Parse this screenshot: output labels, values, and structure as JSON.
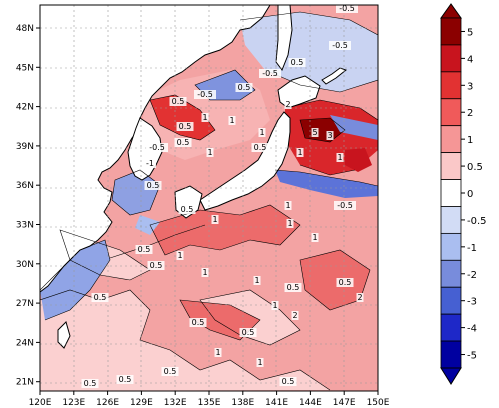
{
  "map": {
    "x_ticks": [
      "120E",
      "123E",
      "126E",
      "129E",
      "132E",
      "135E",
      "138E",
      "141E",
      "144E",
      "147E",
      "150E"
    ],
    "y_ticks": [
      "48N",
      "45N",
      "42N",
      "39N",
      "36N",
      "33N",
      "30N",
      "27N",
      "24N",
      "21N"
    ],
    "contour_labels": [
      "-0.5",
      "-0.5",
      "-0.5",
      "0.5",
      "0.5",
      "-0.5",
      "0.5",
      "2",
      "1",
      "1",
      "0.5",
      "0.5",
      "5",
      "3",
      "1",
      "1",
      "-1",
      "-0.5",
      "0.5",
      "1",
      "1",
      "0.5",
      "-0.5",
      "1",
      "0.5",
      "1",
      "1",
      "1",
      "0.5",
      "0.5",
      "0.5",
      "1",
      "1",
      "1",
      "0.5",
      "0.5",
      "1",
      "2",
      "2",
      "1",
      "0.5",
      "0.5",
      "1",
      "0.5",
      "0.5",
      "0.5",
      "0.5"
    ]
  },
  "colorbar": {
    "labels": [
      "5",
      "4",
      "3",
      "2",
      "1",
      "0.5",
      "0",
      "-0.5",
      "-1",
      "-2",
      "-3",
      "-4",
      "-5"
    ],
    "colors": [
      "#8b0000",
      "#c8141e",
      "#e23232",
      "#f05a5a",
      "#f59696",
      "#fac8c8",
      "#ffffff",
      "#d2dcf5",
      "#aabef0",
      "#788cdc",
      "#4660d2",
      "#1e28c8",
      "#0000a0"
    ]
  }
}
